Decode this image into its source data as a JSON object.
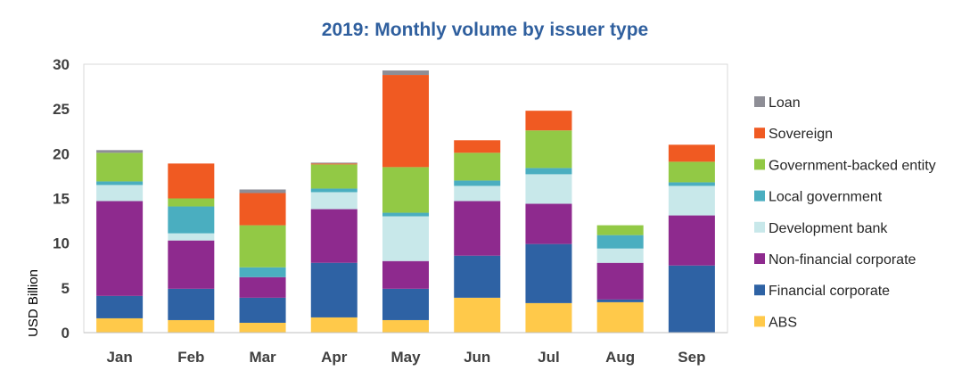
{
  "chart_data": {
    "type": "bar",
    "stacked": true,
    "title": "2019: Monthly volume by issuer type",
    "xlabel": "",
    "ylabel": "USD Billion",
    "ylim": [
      0,
      30
    ],
    "yticks": [
      0,
      5,
      10,
      15,
      20,
      25,
      30
    ],
    "grid": false,
    "legend_position": "right",
    "categories": [
      "Jan",
      "Feb",
      "Mar",
      "Apr",
      "May",
      "Jun",
      "Jul",
      "Aug",
      "Sep"
    ],
    "series": [
      {
        "name": "ABS",
        "color": "#ffc94a",
        "values": [
          1.6,
          1.4,
          1.1,
          1.7,
          1.4,
          3.9,
          3.3,
          3.4,
          0.0
        ]
      },
      {
        "name": "Financial corporate",
        "color": "#2e62a4",
        "values": [
          2.5,
          3.5,
          2.8,
          6.1,
          3.5,
          4.7,
          6.6,
          0.3,
          7.5
        ]
      },
      {
        "name": "Non-financial corporate",
        "color": "#8e2a8e",
        "values": [
          10.6,
          5.4,
          2.3,
          6.0,
          3.1,
          6.1,
          4.5,
          4.1,
          5.6
        ]
      },
      {
        "name": "Development bank",
        "color": "#c8e8ea",
        "values": [
          1.8,
          0.8,
          0.0,
          1.9,
          5.0,
          1.7,
          3.3,
          1.6,
          3.3
        ]
      },
      {
        "name": "Local government",
        "color": "#4aaec0",
        "values": [
          0.4,
          3.0,
          1.1,
          0.4,
          0.4,
          0.6,
          0.7,
          1.5,
          0.4
        ]
      },
      {
        "name": "Government-backed entity",
        "color": "#92c945",
        "values": [
          3.2,
          0.9,
          4.7,
          2.7,
          5.1,
          3.1,
          4.2,
          1.1,
          2.3
        ]
      },
      {
        "name": "Sovereign",
        "color": "#f05a22",
        "values": [
          0.0,
          3.9,
          3.6,
          0.1,
          10.3,
          1.4,
          2.2,
          0.0,
          1.9
        ]
      },
      {
        "name": "Loan",
        "color": "#8e8e96",
        "values": [
          0.3,
          0.0,
          0.4,
          0.1,
          0.5,
          0.0,
          0.0,
          0.0,
          0.0
        ]
      }
    ],
    "legend_order": [
      "Loan",
      "Sovereign",
      "Government-backed entity",
      "Local government",
      "Development bank",
      "Non-financial corporate",
      "Financial corporate",
      "ABS"
    ]
  }
}
